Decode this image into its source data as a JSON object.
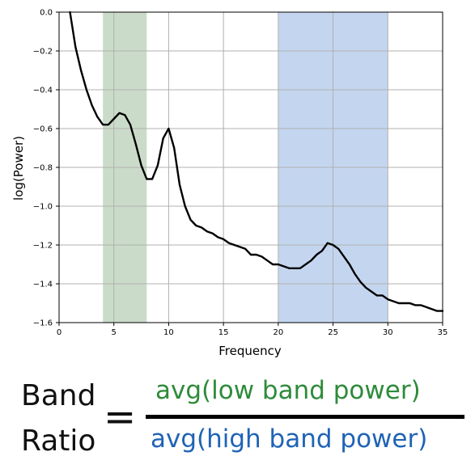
{
  "chart_data": {
    "type": "line",
    "xlabel": "Frequency",
    "ylabel": "log(Power)",
    "xlim": [
      0,
      35
    ],
    "ylim": [
      -1.6,
      0.0
    ],
    "grid": true,
    "x_ticks": [
      "0",
      "5",
      "10",
      "15",
      "20",
      "25",
      "30",
      "35"
    ],
    "y_ticks": [
      "0.0",
      "−0.2",
      "−0.4",
      "−0.6",
      "−0.8",
      "−1.0",
      "−1.2",
      "−1.4",
      "−1.6"
    ],
    "x_tick_values": [
      0,
      5,
      10,
      15,
      20,
      25,
      30,
      35
    ],
    "y_tick_values": [
      0.0,
      -0.2,
      -0.4,
      -0.6,
      -0.8,
      -1.0,
      -1.2,
      -1.4,
      -1.6
    ],
    "bands": [
      {
        "x_start": 4,
        "x_end": 8,
        "color": "#9ebf9c"
      },
      {
        "x_start": 20,
        "x_end": 30,
        "color": "#94b5e2"
      }
    ],
    "series": [
      {
        "color": "#000000",
        "x": [
          1,
          1.5,
          2,
          2.5,
          3,
          3.5,
          4,
          4.5,
          5,
          5.5,
          6,
          6.5,
          7,
          7.5,
          8,
          8.5,
          9,
          9.5,
          10,
          10.5,
          11,
          11.5,
          12,
          12.5,
          13,
          13.5,
          14,
          14.5,
          15,
          15.5,
          16,
          16.5,
          17,
          17.5,
          18,
          18.5,
          19,
          19.5,
          20,
          20.5,
          21,
          21.5,
          22,
          22.5,
          23,
          23.5,
          24,
          24.5,
          25,
          25.5,
          26,
          26.5,
          27,
          27.5,
          28,
          28.5,
          29,
          29.5,
          30,
          30.5,
          31,
          31.5,
          32,
          32.5,
          33,
          33.5,
          34,
          34.5,
          35
        ],
        "y": [
          0.0,
          -0.18,
          -0.3,
          -0.4,
          -0.48,
          -0.54,
          -0.58,
          -0.58,
          -0.55,
          -0.52,
          -0.53,
          -0.58,
          -0.68,
          -0.79,
          -0.86,
          -0.86,
          -0.79,
          -0.65,
          -0.6,
          -0.7,
          -0.89,
          -1.0,
          -1.07,
          -1.1,
          -1.11,
          -1.13,
          -1.14,
          -1.16,
          -1.17,
          -1.19,
          -1.2,
          -1.21,
          -1.22,
          -1.25,
          -1.25,
          -1.26,
          -1.28,
          -1.3,
          -1.3,
          -1.31,
          -1.32,
          -1.32,
          -1.32,
          -1.3,
          -1.28,
          -1.25,
          -1.23,
          -1.19,
          -1.2,
          -1.22,
          -1.26,
          -1.3,
          -1.35,
          -1.39,
          -1.42,
          -1.44,
          -1.46,
          -1.46,
          -1.48,
          -1.49,
          -1.5,
          -1.5,
          -1.5,
          -1.51,
          -1.51,
          -1.52,
          -1.53,
          -1.54,
          -1.54
        ]
      }
    ]
  },
  "equation": {
    "left_word1": "Band",
    "left_word2": "Ratio",
    "equals": "=",
    "numerator": "avg(low band power)",
    "numerator_color": "#2e8b3a",
    "denominator": "avg(high band power)",
    "denominator_color": "#1f63b5"
  }
}
